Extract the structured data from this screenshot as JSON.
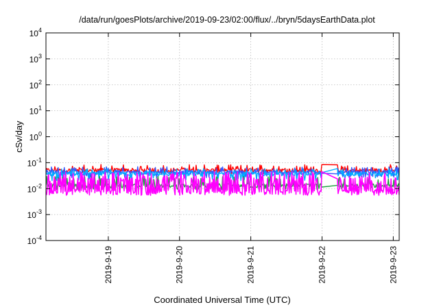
{
  "chart_data": {
    "type": "line",
    "title": "/data/run/goesPlots/archive/2019-09-23/02:00/flux/../bryn/5daysEarthData.plot",
    "xlabel": "Coordinated Universal Time (UTC)",
    "ylabel": "cSv/day",
    "yscale": "log",
    "ylim": [
      0.0001,
      10000
    ],
    "y_ticks": [
      {
        "value": 0.0001,
        "base": "10",
        "exp": "-4"
      },
      {
        "value": 0.001,
        "base": "10",
        "exp": "-3"
      },
      {
        "value": 0.01,
        "base": "10",
        "exp": "-2"
      },
      {
        "value": 0.1,
        "base": "10",
        "exp": "-1"
      },
      {
        "value": 1,
        "base": "10",
        "exp": "0"
      },
      {
        "value": 10,
        "base": "10",
        "exp": "1"
      },
      {
        "value": 100,
        "base": "10",
        "exp": "2"
      },
      {
        "value": 1000,
        "base": "10",
        "exp": "3"
      },
      {
        "value": 10000,
        "base": "10",
        "exp": "4"
      }
    ],
    "xlim": [
      "2019-09-18 03:00",
      "2019-09-23 02:00"
    ],
    "x_ticks": [
      "2019-9-19",
      "2019-9-20",
      "2019-9-21",
      "2019-9-22",
      "2019-9-23"
    ],
    "grid": true,
    "series": [
      {
        "color": "#ff0000",
        "level": 0.05,
        "spike_max": 0.085,
        "dip_min": 0.035
      },
      {
        "color": "#3355ff",
        "level": 0.042,
        "spike_max": 0.07,
        "dip_min": 0.025
      },
      {
        "color": "#00aaff",
        "level": 0.036,
        "spike_max": 0.06,
        "dip_min": 0.02
      },
      {
        "color": "#20a040",
        "level": 0.013,
        "spike_max": 0.03,
        "dip_min": 0.009
      },
      {
        "color": "#ff00ff",
        "level": 0.0075,
        "spike_max": 0.045,
        "dip_min": 0.0055
      }
    ],
    "data_gap": [
      "2019-09-22 00:00",
      "2019-09-22 05:00"
    ]
  }
}
